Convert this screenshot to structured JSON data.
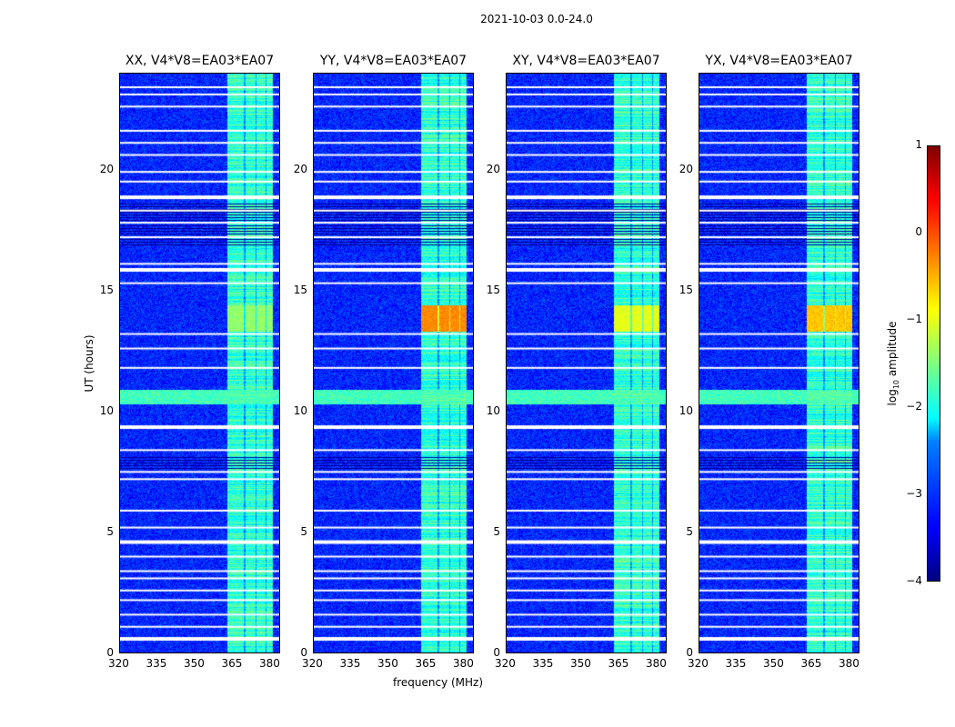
{
  "suptitle": "2021-10-03 0.0-24.0",
  "chart_data": {
    "type": "heatmap",
    "title": "2021-10-03 0.0-24.0",
    "xlabel": "frequency (MHz)",
    "ylabel": "UT (hours)",
    "xlim": [
      320,
      384
    ],
    "ylim": [
      0,
      24
    ],
    "xticks": [
      "320",
      "335",
      "350",
      "365",
      "380"
    ],
    "yticks": [
      "0",
      "5",
      "10",
      "15",
      "20"
    ],
    "panels": [
      {
        "title": "XX, V4*V8=EA03*EA07",
        "band_peak": -1.4
      },
      {
        "title": "YY, V4*V8=EA03*EA07",
        "band_peak": -0.3
      },
      {
        "title": "XY, V4*V8=EA03*EA07",
        "band_peak": -1.0
      },
      {
        "title": "YX, V4*V8=EA03*EA07",
        "band_peak": -0.6
      }
    ],
    "background_level": -3.2,
    "rfi_band_mhz": [
      363,
      381
    ],
    "rfi_subbands_mhz": [
      [
        363,
        369.5
      ],
      [
        370,
        374
      ],
      [
        374.5,
        378
      ],
      [
        378.5,
        381
      ]
    ],
    "broadband_rfi_hours": [
      10.3,
      10.9
    ],
    "strong_rfi_hours": [
      13.3,
      14.4
    ],
    "dark_hours": [
      [
        16.9,
        18.6
      ],
      [
        7.6,
        8.2
      ]
    ],
    "flagged_rows_hours": [
      23.4,
      23.1,
      22.6,
      21.6,
      21.1,
      20.6,
      19.9,
      19.5,
      18.85,
      18.3,
      17.8,
      17.2,
      16.1,
      15.85,
      15.3,
      13.2,
      12.6,
      11.8,
      9.35,
      8.4,
      7.5,
      7.2,
      5.9,
      5.2,
      4.6,
      4.0,
      3.4,
      3.1,
      2.6,
      2.2,
      1.6,
      1.1,
      0.6
    ],
    "colorbar": {
      "label": "log",
      "label_sub": "10",
      "label_suffix": " amplitude",
      "range": [
        -4,
        1
      ],
      "ticks": [
        "1",
        "0",
        "−1",
        "−2",
        "−3",
        "−4"
      ],
      "colormap": "jet"
    }
  }
}
